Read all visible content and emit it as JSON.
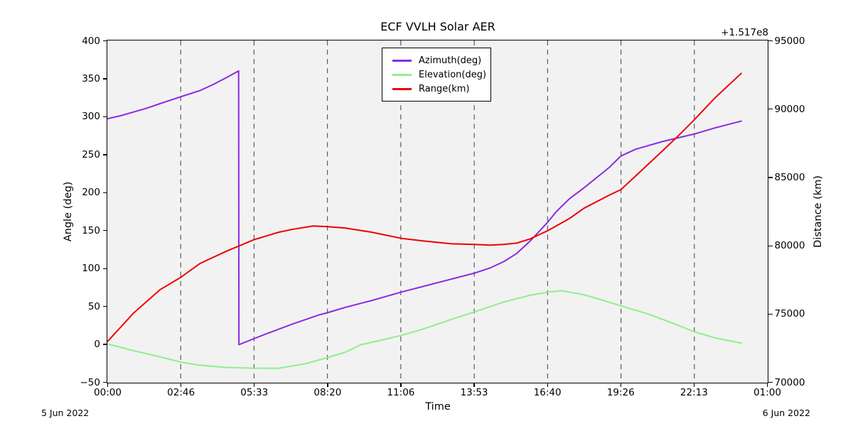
{
  "figure": {
    "title": "ECF VVLH Solar AER",
    "axis_offset_label": "+1.517e8",
    "xlabel": "Time",
    "ylabel_left": "Angle (deg)",
    "ylabel_right": "Distance (km)",
    "date_left": "5 Jun 2022",
    "date_right": "6 Jun 2022"
  },
  "legend": {
    "items": [
      {
        "label": "Azimuth(deg)",
        "color": "#8A2BE2"
      },
      {
        "label": "Elevation(deg)",
        "color": "#90EE90"
      },
      {
        "label": "Range(km)",
        "color": "#EE0000"
      }
    ]
  },
  "chart_data": {
    "type": "line",
    "title": "ECF VVLH Solar AER",
    "xlabel": "Time",
    "grid": {
      "vertical_dashed": true,
      "horizontal": false
    },
    "legend_position": "upper center",
    "colors": {
      "plot_bg": "#f2f2f2",
      "frame": "#000000",
      "grid": "#4d4d4d"
    },
    "x_axis": {
      "unit": "time of day, ticks every 10000 s",
      "range_hours": [
        0,
        25
      ],
      "tick_hours": [
        0,
        2.7778,
        5.5556,
        8.3333,
        11.1111,
        13.8889,
        16.6667,
        19.4444,
        22.2222,
        25
      ],
      "tick_labels": [
        "00:00",
        "02:46",
        "05:33",
        "08:20",
        "11:06",
        "13:53",
        "16:40",
        "19:26",
        "22:13",
        "01:00"
      ],
      "start_date": "5 Jun 2022",
      "end_date": "6 Jun 2022"
    },
    "y_left": {
      "label": "Angle (deg)",
      "range": [
        -50,
        400
      ],
      "ticks": [
        400,
        350,
        300,
        250,
        200,
        150,
        100,
        50,
        0,
        -50
      ],
      "tick_labels": [
        "400",
        "350",
        "300",
        "250",
        "200",
        "150",
        "100",
        "50",
        "0",
        "−50"
      ]
    },
    "y_right": {
      "label": "Distance (km)",
      "offset_text": "+1.517e8",
      "range": [
        70000,
        95000
      ],
      "ticks": [
        95000,
        90000,
        85000,
        80000,
        75000,
        70000
      ],
      "tick_labels": [
        "95000",
        "90000",
        "85000",
        "80000",
        "75000",
        "70000"
      ]
    },
    "series": [
      {
        "name": "Azimuth(deg)",
        "axis": "left",
        "color": "#8A2BE2",
        "note": "wraps from 360 to 0 deg at ~04:59",
        "t_hours": [
          0,
          0.5,
          1,
          1.5,
          2,
          2.78,
          3.5,
          4,
          4.5,
          4.97,
          4.98,
          5.56,
          6,
          7,
          8,
          8.33,
          9,
          10,
          11.11,
          12,
          13,
          13.89,
          14.5,
          15,
          15.5,
          16,
          16.67,
          17,
          17.5,
          18,
          18.5,
          19,
          19.44,
          20,
          21,
          22.22,
          23,
          24
        ],
        "values": [
          297,
          301,
          306,
          311,
          317,
          326,
          334,
          342,
          351,
          360,
          0,
          8,
          14,
          27,
          39,
          42,
          49,
          58,
          69,
          77,
          86,
          94,
          101,
          109,
          120,
          136,
          161,
          175,
          192,
          205,
          219,
          233,
          248,
          257,
          267,
          277,
          285,
          294
        ]
      },
      {
        "name": "Elevation(deg)",
        "axis": "left",
        "color": "#90EE90",
        "t_hours": [
          0,
          1,
          2,
          2.78,
          3.5,
          4.5,
          5.56,
          6.5,
          7.5,
          8.33,
          9,
          9.6,
          10.5,
          11.11,
          12,
          13,
          13.89,
          15,
          16,
          16.67,
          17.2,
          18,
          18.7,
          19.44,
          20.5,
          21.5,
          22.22,
          23,
          24
        ],
        "values": [
          1,
          -8,
          -16,
          -23,
          -27,
          -30,
          -31,
          -31,
          -25,
          -17,
          -10,
          0,
          7,
          12,
          21,
          33,
          43,
          56,
          65,
          69,
          71,
          66,
          59,
          51,
          40,
          27,
          17,
          9,
          2
        ]
      },
      {
        "name": "Range(km)",
        "axis": "right",
        "color": "#EE0000",
        "note": "values are km above offset +1.517e8",
        "t_hours": [
          0,
          1,
          2,
          2.78,
          3.5,
          4.5,
          5.56,
          6.5,
          7,
          7.8,
          8.33,
          9,
          10,
          11.11,
          12,
          13,
          13.89,
          14.5,
          15,
          15.5,
          16,
          16.67,
          17.5,
          18.05,
          19,
          19.44,
          20,
          21,
          21.65,
          22.22,
          23,
          24
        ],
        "values": [
          73000,
          75100,
          76800,
          77700,
          78700,
          79600,
          80450,
          81000,
          81200,
          81450,
          81400,
          81300,
          81000,
          80550,
          80350,
          80150,
          80100,
          80050,
          80100,
          80200,
          80500,
          81100,
          82000,
          82750,
          83700,
          84100,
          85100,
          86900,
          88100,
          89200,
          90800,
          92600
        ]
      }
    ]
  }
}
